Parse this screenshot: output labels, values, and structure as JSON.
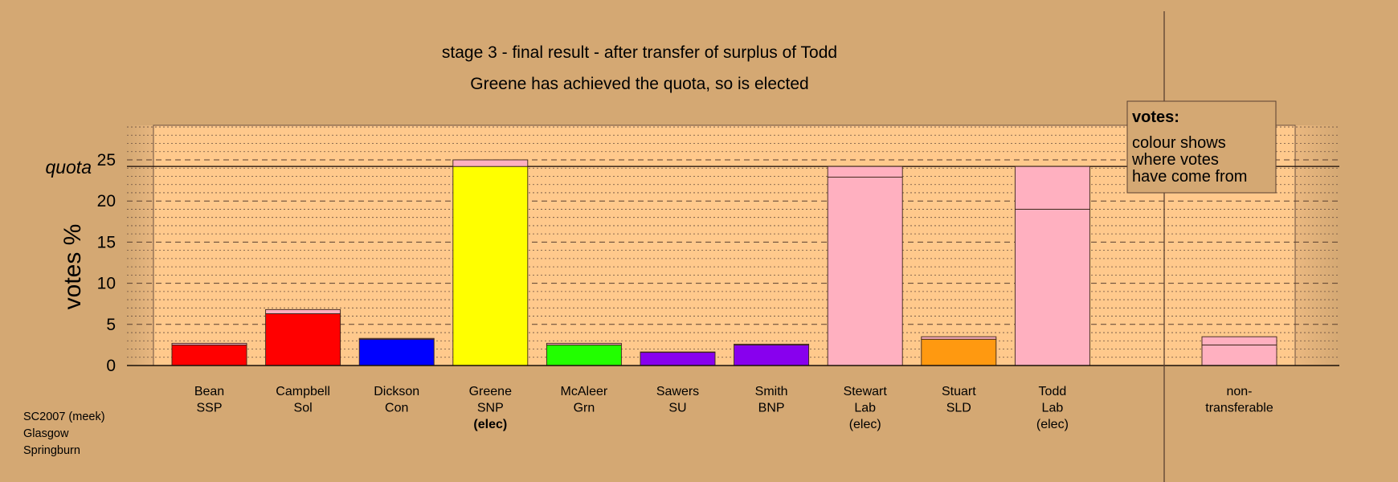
{
  "chart_data": {
    "type": "bar",
    "title": "stage 3 - final result - after transfer of surplus of Todd",
    "subtitle": "Greene has achieved the quota, so is elected",
    "ylabel": "votes %",
    "ylim": [
      0,
      29
    ],
    "yticks": [
      0,
      5,
      10,
      15,
      20,
      25
    ],
    "quota": 24.2,
    "quota_label": "quota",
    "grid": true,
    "legend": {
      "title": "votes:",
      "lines": [
        "colour shows",
        "where votes",
        "have come from"
      ],
      "placement": "top-right"
    },
    "candidates": [
      {
        "name": "Bean",
        "party": "SSP",
        "status": "",
        "segments": [
          {
            "value": 2.5,
            "color": "#FF0000"
          },
          {
            "value": 0.2,
            "color": "#FFB0C0"
          }
        ]
      },
      {
        "name": "Campbell",
        "party": "Sol",
        "status": "",
        "segments": [
          {
            "value": 6.3,
            "color": "#FF0000"
          },
          {
            "value": 0.5,
            "color": "#FFB0C0"
          }
        ]
      },
      {
        "name": "Dickson",
        "party": "Con",
        "status": "",
        "segments": [
          {
            "value": 3.2,
            "color": "#0000FF"
          },
          {
            "value": 0.1,
            "color": "#FFB0C0"
          }
        ]
      },
      {
        "name": "Greene",
        "party": "SNP",
        "status": "(elec)",
        "status_bold": true,
        "segments": [
          {
            "value": 24.2,
            "color": "#FFFF00"
          },
          {
            "value": 0.8,
            "color": "#FFB0C0"
          }
        ]
      },
      {
        "name": "McAleer",
        "party": "Grn",
        "status": "",
        "segments": [
          {
            "value": 2.5,
            "color": "#22FF00"
          },
          {
            "value": 0.2,
            "color": "#FFB0C0"
          }
        ]
      },
      {
        "name": "Sawers",
        "party": "SU",
        "status": "",
        "segments": [
          {
            "value": 1.6,
            "color": "#8800EE"
          },
          {
            "value": 0.05,
            "color": "#FFB0C0"
          }
        ]
      },
      {
        "name": "Smith",
        "party": "BNP",
        "status": "",
        "segments": [
          {
            "value": 2.5,
            "color": "#8800EE"
          },
          {
            "value": 0.1,
            "color": "#FFB0C0"
          }
        ]
      },
      {
        "name": "Stewart",
        "party": "Lab",
        "status": "(elec)",
        "status_bold": false,
        "segments": [
          {
            "value": 22.9,
            "color": "#FFB0C0"
          },
          {
            "value": 1.3,
            "color": "#FFB0C0"
          }
        ]
      },
      {
        "name": "Stuart",
        "party": "SLD",
        "status": "",
        "segments": [
          {
            "value": 3.2,
            "color": "#FF9910"
          },
          {
            "value": 0.3,
            "color": "#FFB0C0"
          }
        ]
      },
      {
        "name": "Todd",
        "party": "Lab",
        "status": "(elec)",
        "status_bold": false,
        "segments": [
          {
            "value": 19.0,
            "color": "#FFB0C0"
          },
          {
            "value": 5.2,
            "color": "#FFB0C0"
          }
        ]
      }
    ],
    "nontransferable": {
      "label_lines": [
        "non-",
        "transferable"
      ],
      "segments": [
        {
          "value": 2.5,
          "color": "#FFB0C0"
        },
        {
          "value": 1.0,
          "color": "#FFB0C0"
        }
      ]
    }
  },
  "footer": {
    "lines": [
      "SC2007 (meek)",
      "Glasgow",
      "Springburn"
    ]
  }
}
